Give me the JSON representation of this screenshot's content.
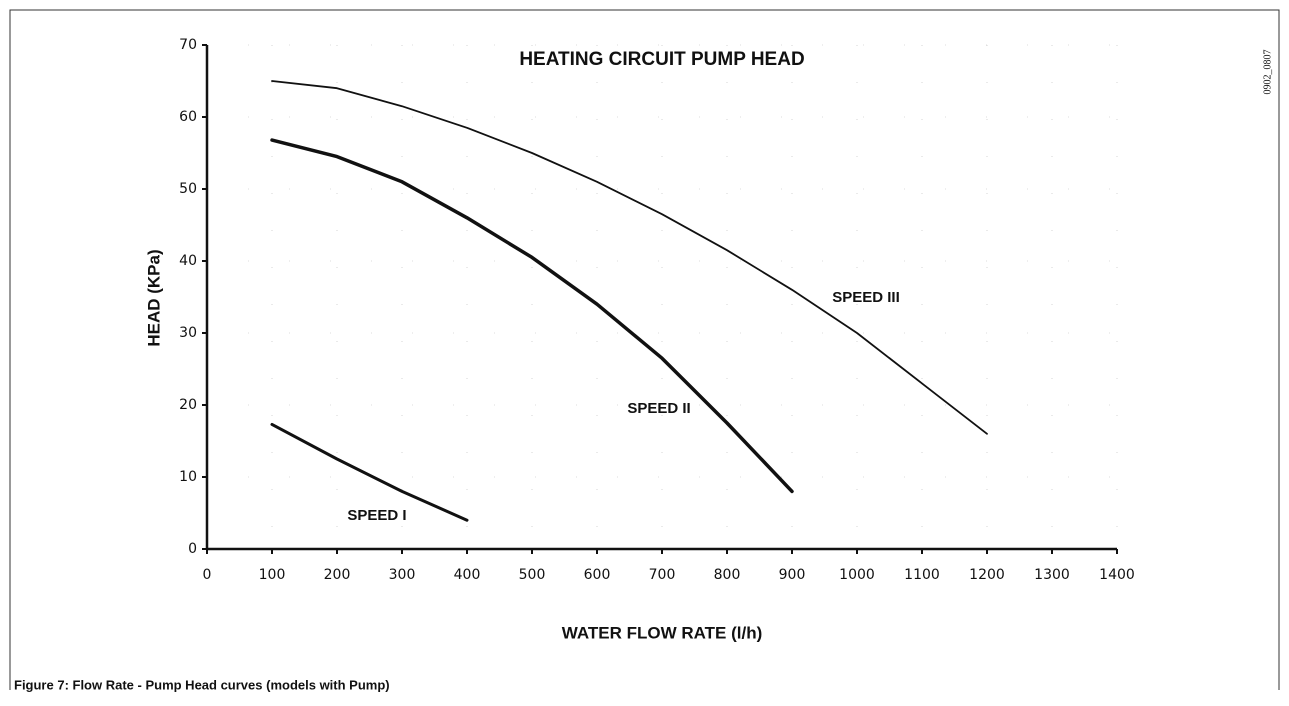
{
  "chart_data": {
    "type": "line",
    "title": "HEATING CIRCUIT PUMP HEAD",
    "xlabel": "WATER FLOW RATE (l/h)",
    "ylabel": "HEAD (KPa)",
    "series": [
      {
        "name": "SPEED I",
        "color": "#111111",
        "x": [
          100,
          200,
          300,
          400
        ],
        "values": [
          17.3,
          12.5,
          8,
          4
        ]
      },
      {
        "name": "SPEED II",
        "color": "#111111",
        "x": [
          100,
          200,
          300,
          400,
          500,
          600,
          700,
          800,
          900
        ],
        "values": [
          56.8,
          54.5,
          51,
          46,
          40.5,
          34,
          26.5,
          17.5,
          8
        ]
      },
      {
        "name": "SPEED III",
        "color": "#111111",
        "x": [
          100,
          200,
          300,
          400,
          500,
          600,
          700,
          800,
          900,
          1000,
          1100,
          1200
        ],
        "values": [
          65,
          64,
          61.5,
          58.5,
          55,
          51,
          46.5,
          41.5,
          36,
          30,
          23,
          16
        ]
      }
    ],
    "xlim": [
      0,
      1400
    ],
    "xticks": [
      0,
      100,
      200,
      300,
      400,
      500,
      600,
      700,
      800,
      900,
      1000,
      1100,
      1200,
      1300,
      1400
    ],
    "ylim": [
      0,
      70
    ],
    "yticks": [
      0,
      10,
      20,
      30,
      40,
      50,
      60,
      70
    ],
    "grid": true
  },
  "figure_id": "0902_0807",
  "caption": "Figure 7: Flow Rate - Pump Head curves (models with Pump)"
}
